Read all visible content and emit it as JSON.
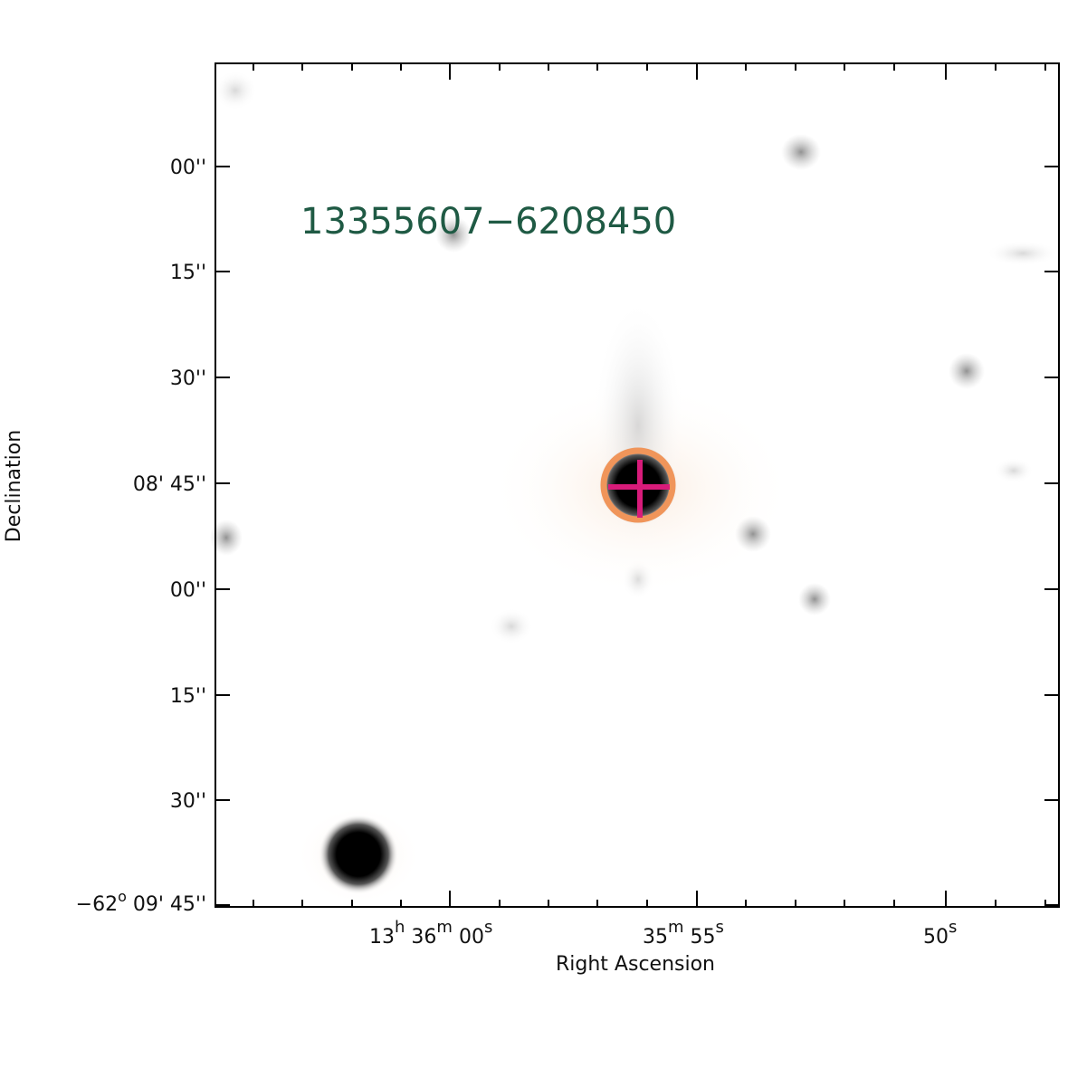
{
  "source_label": "13355607−6208450",
  "axes": {
    "x_title": "Right Ascension",
    "y_title": "Declination"
  },
  "dec_ticks": {
    "t1": "00''",
    "t2": "15''",
    "t3": "30''",
    "t4": "08' 45''",
    "t5": "00''",
    "t6": "15''",
    "t7": "30''",
    "t8": "−62",
    "t8_sup": "o",
    "t8_rest": " 09' 45''"
  },
  "ra_ticks": {
    "r1_h": "13",
    "r1_h_sup": "h",
    "r1_m": " 36",
    "r1_m_sup": "m",
    "r1_s": " 00",
    "r1_s_sup": "s",
    "r2_m": "35",
    "r2_m_sup": "m",
    "r2_s": " 55",
    "r2_s_sup": "s",
    "r3_s": "50",
    "r3_s_sup": "s"
  },
  "colors": {
    "source_label": "#1f5a44",
    "marker_ring": "#f0955a",
    "marker_cross": "#d81b7a",
    "frame": "#000000"
  },
  "stars": [
    {
      "id": "target",
      "shape": "ring-star"
    },
    {
      "id": "bright-lower-left"
    },
    {
      "id": "upper-faint"
    },
    {
      "id": "right-mid-faint"
    },
    {
      "id": "near-target-faint"
    },
    {
      "id": "lower-right-faint"
    }
  ]
}
